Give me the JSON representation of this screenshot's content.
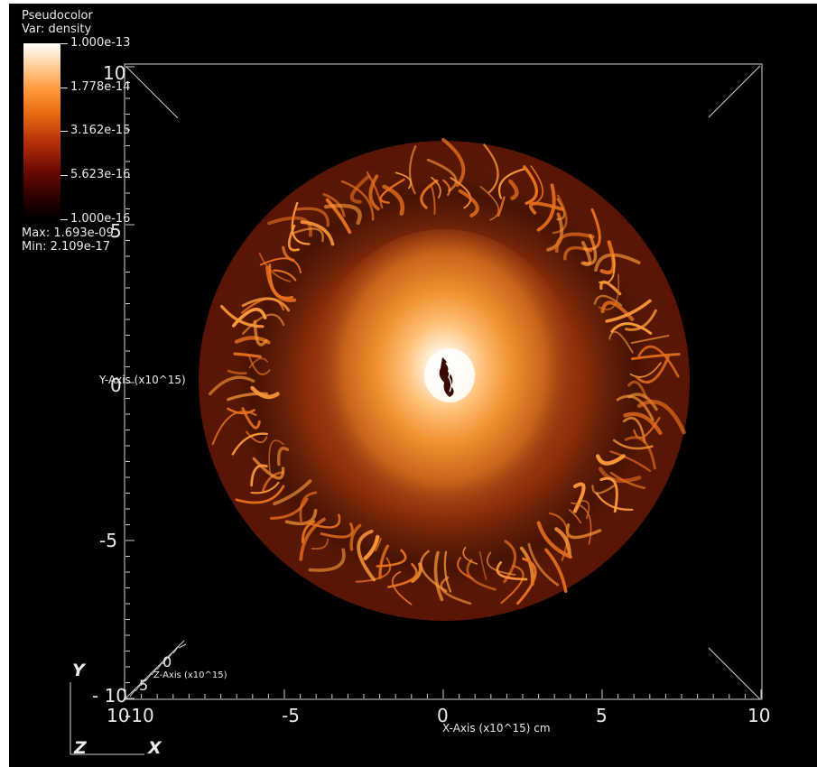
{
  "legend": {
    "plot_type": "Pseudocolor",
    "variable": "Var: density",
    "ticks": [
      "1.000e-13",
      "1.778e-14",
      "3.162e-15",
      "5.623e-16",
      "1.000e-16"
    ],
    "max_label": "Max:  1.693e-09",
    "min_label": "Min:  2.109e-17"
  },
  "axes": {
    "y_title": "Y-Axis (x10^15)",
    "x_title": "X-Axis (x10^15) cm",
    "z_title": "Z-Axis (x10^15)",
    "y_ticks": [
      "10",
      "5",
      "0",
      "-5",
      "- 10"
    ],
    "x_ticks": [
      "10",
      "-10",
      "-5",
      "0",
      "5",
      "10"
    ],
    "z_ticks": [
      "0",
      "5"
    ],
    "triad": {
      "y": "Y",
      "z": "Z",
      "x": "X"
    }
  },
  "colors": {
    "background": "#000000",
    "shell": "#8a2508",
    "core": "#ffffff",
    "filaments": "#ff8a2a"
  }
}
